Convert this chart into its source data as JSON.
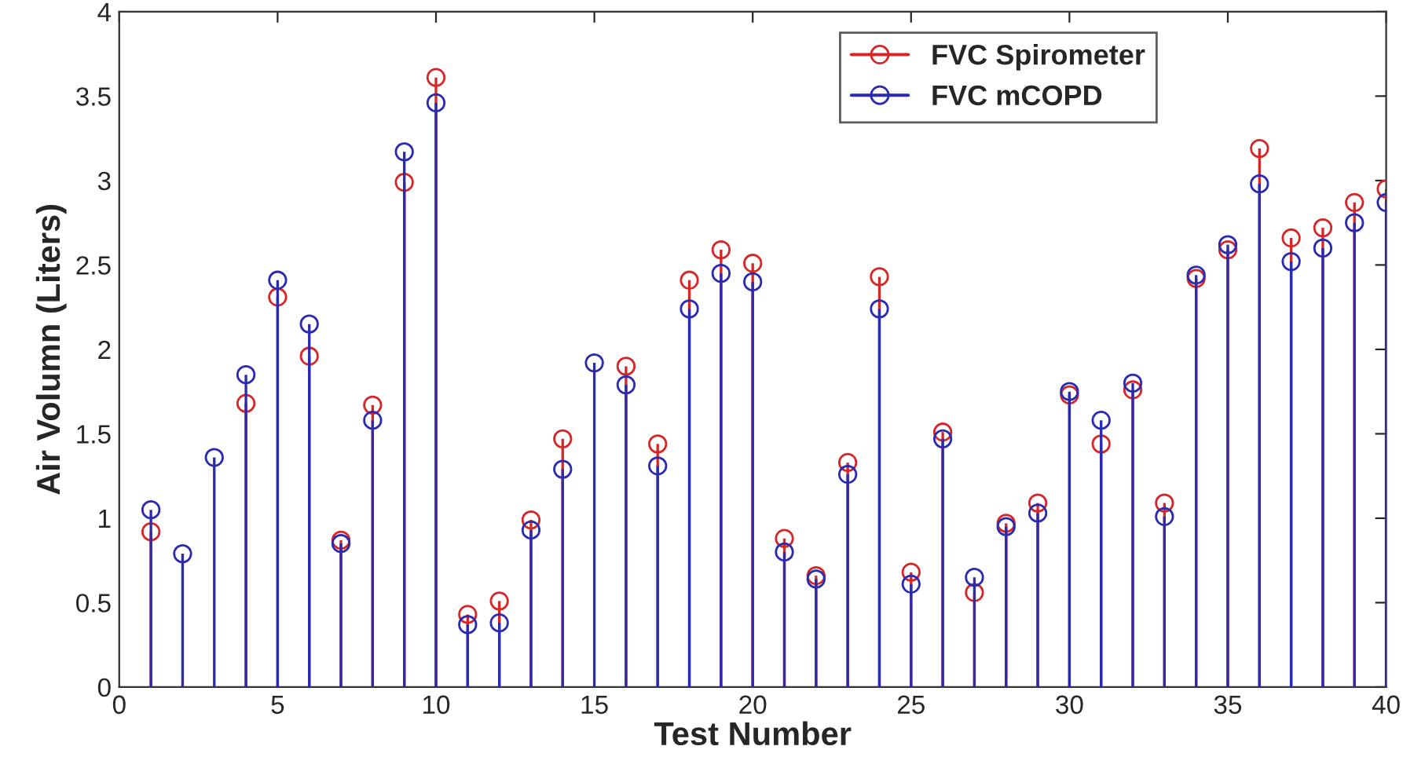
{
  "chart_data": {
    "type": "lollipop",
    "xlabel": "Test Number",
    "ylabel": "Air Volumn (Liters)",
    "x": [
      1,
      2,
      3,
      4,
      5,
      6,
      7,
      8,
      9,
      10,
      11,
      12,
      13,
      14,
      15,
      16,
      17,
      18,
      19,
      20,
      21,
      22,
      23,
      24,
      25,
      26,
      27,
      28,
      29,
      30,
      31,
      32,
      33,
      34,
      35,
      36,
      37,
      38,
      39,
      40
    ],
    "series": [
      {
        "name": "FVC Spirometer",
        "color": "#d62728",
        "values": [
          0.92,
          null,
          null,
          1.68,
          2.31,
          1.96,
          0.87,
          1.67,
          2.99,
          3.61,
          0.43,
          0.51,
          0.99,
          1.47,
          null,
          1.9,
          1.44,
          2.41,
          2.59,
          2.51,
          0.88,
          0.66,
          1.33,
          2.43,
          0.68,
          1.51,
          0.56,
          0.97,
          1.09,
          1.73,
          1.44,
          1.76,
          1.09,
          2.42,
          2.59,
          3.19,
          2.66,
          2.72,
          2.87,
          2.95
        ]
      },
      {
        "name": "FVC mCOPD",
        "color": "#2b2bb0",
        "values": [
          1.05,
          0.79,
          1.36,
          1.85,
          2.41,
          2.15,
          0.85,
          1.58,
          3.17,
          3.46,
          0.37,
          0.38,
          0.93,
          1.29,
          1.92,
          1.79,
          1.31,
          2.24,
          2.45,
          2.4,
          0.8,
          0.64,
          1.26,
          2.24,
          0.61,
          1.47,
          0.65,
          0.95,
          1.03,
          1.75,
          1.58,
          1.8,
          1.01,
          2.44,
          2.62,
          2.98,
          2.52,
          2.6,
          2.75,
          2.87
        ]
      }
    ],
    "xlim": [
      0,
      40
    ],
    "xticks": [
      0,
      5,
      10,
      15,
      20,
      25,
      30,
      35,
      40
    ],
    "ylim": [
      0,
      4
    ],
    "yticks": [
      0,
      0.5,
      1,
      1.5,
      2,
      2.5,
      3,
      3.5,
      4
    ],
    "grid": false,
    "legend": "top right",
    "marker": "circle"
  }
}
